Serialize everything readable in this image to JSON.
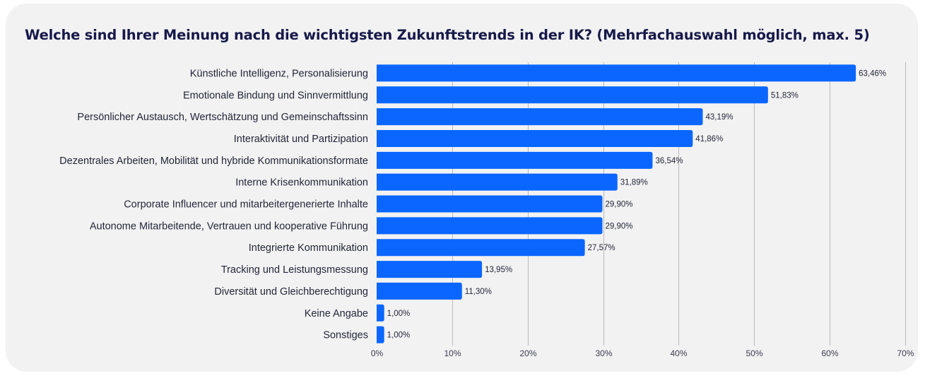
{
  "chart_data": {
    "type": "bar",
    "orientation": "horizontal",
    "title": "Welche sind Ihrer Meinung nach die wichtigsten Zukunftstrends in der IK? (Mehrfachauswahl möglich, max. 5)",
    "xlabel": "",
    "ylabel": "",
    "xlim": [
      0,
      70
    ],
    "x_ticks": [
      0,
      10,
      20,
      30,
      40,
      50,
      60,
      70
    ],
    "x_tick_labels": [
      "0%",
      "10%",
      "20%",
      "30%",
      "40%",
      "50%",
      "60%",
      "70%"
    ],
    "grid": "vertical",
    "legend": "none",
    "bar_color": "#0a66ff",
    "categories": [
      "Künstliche Intelligenz, Personalisierung",
      "Emotionale Bindung und Sinnvermittlung",
      "Persönlicher Austausch, Wertschätzung und Gemeinschaftssinn",
      "Interaktivität und Partizipation",
      "Dezentrales Arbeiten, Mobilität und hybride Kommunikationsformate",
      "Interne Krisenkommunikation",
      "Corporate Influencer und mitarbeitergenerierte Inhalte",
      "Autonome Mitarbeitende, Vertrauen und kooperative Führung",
      "Integrierte Kommunikation",
      "Tracking und Leistungsmessung",
      "Diversität und Gleichberechtigung",
      "Keine Angabe",
      "Sonstiges"
    ],
    "values": [
      63.46,
      51.83,
      43.19,
      41.86,
      36.54,
      31.89,
      29.9,
      29.9,
      27.57,
      13.95,
      11.3,
      1.0,
      1.0
    ],
    "value_labels": [
      "63,46%",
      "51,83%",
      "43,19%",
      "41,86%",
      "36,54%",
      "31,89%",
      "29,90%",
      "29,90%",
      "27,57%",
      "13,95%",
      "11,30%",
      "1,00%",
      "1,00%"
    ]
  }
}
